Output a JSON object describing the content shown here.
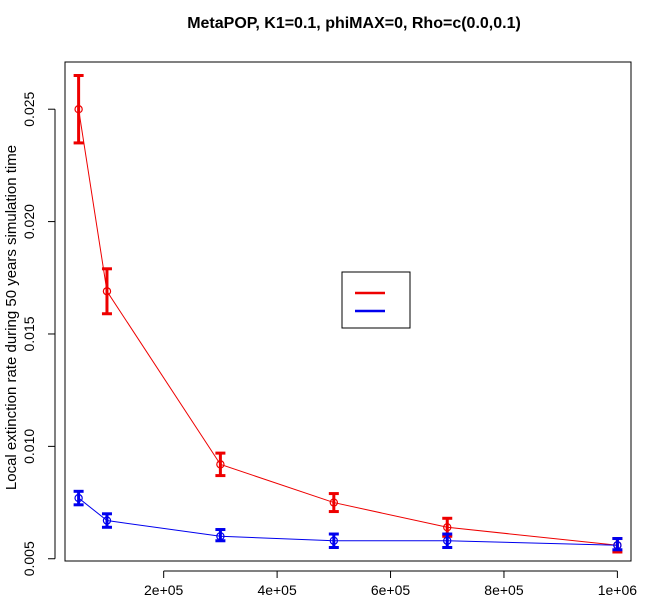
{
  "chart_data": {
    "type": "line",
    "title": "MetaPOP, K1=0.1, phiMAX=0, Rho=c(0.0,0.1)",
    "xlabel": "",
    "ylabel": "Local extinction rate during 50 years simulation time",
    "xlim": [
      26000,
      1024000
    ],
    "ylim": [
      0.0049,
      0.0271
    ],
    "x_ticks": [
      {
        "value": 200000,
        "label": "2e+05"
      },
      {
        "value": 400000,
        "label": "4e+05"
      },
      {
        "value": 600000,
        "label": "6e+05"
      },
      {
        "value": 800000,
        "label": "8e+05"
      },
      {
        "value": 1000000,
        "label": "1e+06"
      }
    ],
    "y_ticks": [
      {
        "value": 0.005,
        "label": "0.005"
      },
      {
        "value": 0.01,
        "label": "0.010"
      },
      {
        "value": 0.015,
        "label": "0.015"
      },
      {
        "value": 0.02,
        "label": "0.020"
      },
      {
        "value": 0.025,
        "label": "0.025"
      }
    ],
    "grid": false,
    "legend": {
      "position": "center-right",
      "entries_text": ""
    },
    "series": [
      {
        "color": "#ee0000",
        "points": [
          {
            "x": 50000,
            "y": 0.025,
            "low": 0.0235,
            "high": 0.0265
          },
          {
            "x": 100000,
            "y": 0.0169,
            "low": 0.0159,
            "high": 0.0179
          },
          {
            "x": 300000,
            "y": 0.0092,
            "low": 0.0087,
            "high": 0.0097
          },
          {
            "x": 500000,
            "y": 0.0075,
            "low": 0.0071,
            "high": 0.0079
          },
          {
            "x": 700000,
            "y": 0.0064,
            "low": 0.006,
            "high": 0.0068
          },
          {
            "x": 1000000,
            "y": 0.0056,
            "low": 0.0053,
            "high": 0.0059
          }
        ]
      },
      {
        "color": "#0000ee",
        "points": [
          {
            "x": 50000,
            "y": 0.0077,
            "low": 0.0074,
            "high": 0.008
          },
          {
            "x": 100000,
            "y": 0.0067,
            "low": 0.0064,
            "high": 0.007
          },
          {
            "x": 300000,
            "y": 0.006,
            "low": 0.0058,
            "high": 0.0063
          },
          {
            "x": 500000,
            "y": 0.0058,
            "low": 0.0055,
            "high": 0.0061
          },
          {
            "x": 700000,
            "y": 0.0058,
            "low": 0.0055,
            "high": 0.0061
          },
          {
            "x": 1000000,
            "y": 0.0056,
            "low": 0.0054,
            "high": 0.0059
          }
        ]
      }
    ]
  }
}
